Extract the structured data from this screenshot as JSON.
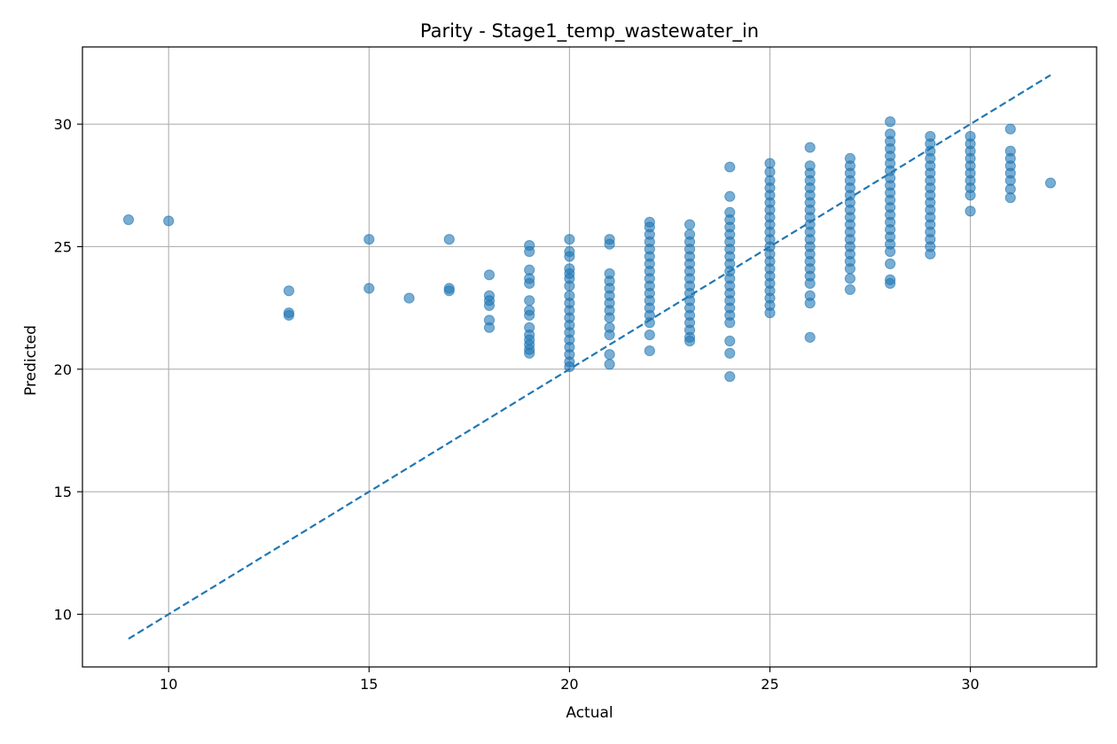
{
  "chart_data": {
    "type": "scatter",
    "title": "Parity - Stage1_temp_wastewater_in",
    "xlabel": "Actual",
    "ylabel": "Predicted",
    "xlim": [
      7.85,
      33.15
    ],
    "ylim": [
      7.85,
      33.15
    ],
    "xticks": [
      10,
      15,
      20,
      25,
      30
    ],
    "yticks": [
      10,
      15,
      20,
      25,
      30
    ],
    "grid": true,
    "colors": {
      "points": "#1f77b4",
      "parity_line": "#1f77b4",
      "grid": "#b0b0b0"
    },
    "parity_line": {
      "x": [
        9,
        32
      ],
      "y": [
        9,
        32
      ],
      "style": "dashed"
    },
    "points": [
      {
        "x": 9,
        "y": 26.1
      },
      {
        "x": 10,
        "y": 26.05
      },
      {
        "x": 13,
        "y": 23.2
      },
      {
        "x": 13,
        "y": 22.3
      },
      {
        "x": 13,
        "y": 22.2
      },
      {
        "x": 15,
        "y": 25.3
      },
      {
        "x": 15,
        "y": 23.3
      },
      {
        "x": 16,
        "y": 22.9
      },
      {
        "x": 17,
        "y": 25.3
      },
      {
        "x": 17,
        "y": 23.3
      },
      {
        "x": 17,
        "y": 23.2
      },
      {
        "x": 18,
        "y": 23.85
      },
      {
        "x": 18,
        "y": 23.0
      },
      {
        "x": 18,
        "y": 22.8
      },
      {
        "x": 18,
        "y": 22.6
      },
      {
        "x": 18,
        "y": 22.0
      },
      {
        "x": 18,
        "y": 21.7
      },
      {
        "x": 19,
        "y": 25.05
      },
      {
        "x": 19,
        "y": 24.8
      },
      {
        "x": 19,
        "y": 24.05
      },
      {
        "x": 19,
        "y": 23.7
      },
      {
        "x": 19,
        "y": 23.5
      },
      {
        "x": 19,
        "y": 22.8
      },
      {
        "x": 19,
        "y": 22.4
      },
      {
        "x": 19,
        "y": 22.2
      },
      {
        "x": 19,
        "y": 21.7
      },
      {
        "x": 19,
        "y": 21.4
      },
      {
        "x": 19,
        "y": 21.2
      },
      {
        "x": 19,
        "y": 21.0
      },
      {
        "x": 19,
        "y": 20.8
      },
      {
        "x": 19,
        "y": 20.65
      },
      {
        "x": 20,
        "y": 25.3
      },
      {
        "x": 20,
        "y": 24.8
      },
      {
        "x": 20,
        "y": 24.6
      },
      {
        "x": 20,
        "y": 24.1
      },
      {
        "x": 20,
        "y": 23.9
      },
      {
        "x": 20,
        "y": 23.7
      },
      {
        "x": 20,
        "y": 23.4
      },
      {
        "x": 20,
        "y": 23.0
      },
      {
        "x": 20,
        "y": 22.7
      },
      {
        "x": 20,
        "y": 22.4
      },
      {
        "x": 20,
        "y": 22.1
      },
      {
        "x": 20,
        "y": 21.8
      },
      {
        "x": 20,
        "y": 21.5
      },
      {
        "x": 20,
        "y": 21.2
      },
      {
        "x": 20,
        "y": 20.9
      },
      {
        "x": 20,
        "y": 20.6
      },
      {
        "x": 20,
        "y": 20.3
      },
      {
        "x": 20,
        "y": 20.1
      },
      {
        "x": 21,
        "y": 25.3
      },
      {
        "x": 21,
        "y": 25.1
      },
      {
        "x": 21,
        "y": 23.9
      },
      {
        "x": 21,
        "y": 23.6
      },
      {
        "x": 21,
        "y": 23.3
      },
      {
        "x": 21,
        "y": 23.0
      },
      {
        "x": 21,
        "y": 22.7
      },
      {
        "x": 21,
        "y": 22.4
      },
      {
        "x": 21,
        "y": 22.1
      },
      {
        "x": 21,
        "y": 21.7
      },
      {
        "x": 21,
        "y": 21.4
      },
      {
        "x": 21,
        "y": 20.6
      },
      {
        "x": 21,
        "y": 20.2
      },
      {
        "x": 22,
        "y": 26.0
      },
      {
        "x": 22,
        "y": 25.8
      },
      {
        "x": 22,
        "y": 25.5
      },
      {
        "x": 22,
        "y": 25.2
      },
      {
        "x": 22,
        "y": 24.9
      },
      {
        "x": 22,
        "y": 24.6
      },
      {
        "x": 22,
        "y": 24.3
      },
      {
        "x": 22,
        "y": 24.0
      },
      {
        "x": 22,
        "y": 23.7
      },
      {
        "x": 22,
        "y": 23.4
      },
      {
        "x": 22,
        "y": 23.1
      },
      {
        "x": 22,
        "y": 22.8
      },
      {
        "x": 22,
        "y": 22.5
      },
      {
        "x": 22,
        "y": 22.2
      },
      {
        "x": 22,
        "y": 21.9
      },
      {
        "x": 22,
        "y": 21.4
      },
      {
        "x": 22,
        "y": 20.75
      },
      {
        "x": 23,
        "y": 25.9
      },
      {
        "x": 23,
        "y": 25.5
      },
      {
        "x": 23,
        "y": 25.2
      },
      {
        "x": 23,
        "y": 24.9
      },
      {
        "x": 23,
        "y": 24.6
      },
      {
        "x": 23,
        "y": 24.3
      },
      {
        "x": 23,
        "y": 24.0
      },
      {
        "x": 23,
        "y": 23.7
      },
      {
        "x": 23,
        "y": 23.4
      },
      {
        "x": 23,
        "y": 23.1
      },
      {
        "x": 23,
        "y": 22.8
      },
      {
        "x": 23,
        "y": 22.5
      },
      {
        "x": 23,
        "y": 22.2
      },
      {
        "x": 23,
        "y": 21.9
      },
      {
        "x": 23,
        "y": 21.6
      },
      {
        "x": 23,
        "y": 21.3
      },
      {
        "x": 23,
        "y": 21.15
      },
      {
        "x": 24,
        "y": 28.25
      },
      {
        "x": 24,
        "y": 27.05
      },
      {
        "x": 24,
        "y": 26.4
      },
      {
        "x": 24,
        "y": 26.1
      },
      {
        "x": 24,
        "y": 25.8
      },
      {
        "x": 24,
        "y": 25.5
      },
      {
        "x": 24,
        "y": 25.2
      },
      {
        "x": 24,
        "y": 24.9
      },
      {
        "x": 24,
        "y": 24.6
      },
      {
        "x": 24,
        "y": 24.3
      },
      {
        "x": 24,
        "y": 24.0
      },
      {
        "x": 24,
        "y": 23.7
      },
      {
        "x": 24,
        "y": 23.4
      },
      {
        "x": 24,
        "y": 23.1
      },
      {
        "x": 24,
        "y": 22.8
      },
      {
        "x": 24,
        "y": 22.5
      },
      {
        "x": 24,
        "y": 22.2
      },
      {
        "x": 24,
        "y": 21.9
      },
      {
        "x": 24,
        "y": 21.15
      },
      {
        "x": 24,
        "y": 20.65
      },
      {
        "x": 24,
        "y": 19.7
      },
      {
        "x": 25,
        "y": 28.4
      },
      {
        "x": 25,
        "y": 28.05
      },
      {
        "x": 25,
        "y": 27.7
      },
      {
        "x": 25,
        "y": 27.4
      },
      {
        "x": 25,
        "y": 27.1
      },
      {
        "x": 25,
        "y": 26.8
      },
      {
        "x": 25,
        "y": 26.5
      },
      {
        "x": 25,
        "y": 26.2
      },
      {
        "x": 25,
        "y": 25.9
      },
      {
        "x": 25,
        "y": 25.6
      },
      {
        "x": 25,
        "y": 25.3
      },
      {
        "x": 25,
        "y": 25.0
      },
      {
        "x": 25,
        "y": 24.7
      },
      {
        "x": 25,
        "y": 24.4
      },
      {
        "x": 25,
        "y": 24.1
      },
      {
        "x": 25,
        "y": 23.8
      },
      {
        "x": 25,
        "y": 23.5
      },
      {
        "x": 25,
        "y": 23.2
      },
      {
        "x": 25,
        "y": 22.9
      },
      {
        "x": 25,
        "y": 22.6
      },
      {
        "x": 25,
        "y": 22.3
      },
      {
        "x": 26,
        "y": 29.05
      },
      {
        "x": 26,
        "y": 28.3
      },
      {
        "x": 26,
        "y": 28.0
      },
      {
        "x": 26,
        "y": 27.7
      },
      {
        "x": 26,
        "y": 27.4
      },
      {
        "x": 26,
        "y": 27.1
      },
      {
        "x": 26,
        "y": 26.8
      },
      {
        "x": 26,
        "y": 26.5
      },
      {
        "x": 26,
        "y": 26.2
      },
      {
        "x": 26,
        "y": 25.9
      },
      {
        "x": 26,
        "y": 25.6
      },
      {
        "x": 26,
        "y": 25.3
      },
      {
        "x": 26,
        "y": 25.0
      },
      {
        "x": 26,
        "y": 24.7
      },
      {
        "x": 26,
        "y": 24.4
      },
      {
        "x": 26,
        "y": 24.1
      },
      {
        "x": 26,
        "y": 23.8
      },
      {
        "x": 26,
        "y": 23.5
      },
      {
        "x": 26,
        "y": 23.0
      },
      {
        "x": 26,
        "y": 22.7
      },
      {
        "x": 26,
        "y": 21.3
      },
      {
        "x": 27,
        "y": 28.6
      },
      {
        "x": 27,
        "y": 28.3
      },
      {
        "x": 27,
        "y": 28.0
      },
      {
        "x": 27,
        "y": 27.7
      },
      {
        "x": 27,
        "y": 27.4
      },
      {
        "x": 27,
        "y": 27.1
      },
      {
        "x": 27,
        "y": 26.8
      },
      {
        "x": 27,
        "y": 26.5
      },
      {
        "x": 27,
        "y": 26.2
      },
      {
        "x": 27,
        "y": 25.9
      },
      {
        "x": 27,
        "y": 25.6
      },
      {
        "x": 27,
        "y": 25.3
      },
      {
        "x": 27,
        "y": 25.0
      },
      {
        "x": 27,
        "y": 24.7
      },
      {
        "x": 27,
        "y": 24.4
      },
      {
        "x": 27,
        "y": 24.1
      },
      {
        "x": 27,
        "y": 23.7
      },
      {
        "x": 27,
        "y": 23.25
      },
      {
        "x": 28,
        "y": 30.1
      },
      {
        "x": 28,
        "y": 29.6
      },
      {
        "x": 28,
        "y": 29.3
      },
      {
        "x": 28,
        "y": 29.0
      },
      {
        "x": 28,
        "y": 28.7
      },
      {
        "x": 28,
        "y": 28.4
      },
      {
        "x": 28,
        "y": 28.1
      },
      {
        "x": 28,
        "y": 27.8
      },
      {
        "x": 28,
        "y": 27.5
      },
      {
        "x": 28,
        "y": 27.2
      },
      {
        "x": 28,
        "y": 26.9
      },
      {
        "x": 28,
        "y": 26.6
      },
      {
        "x": 28,
        "y": 26.3
      },
      {
        "x": 28,
        "y": 26.0
      },
      {
        "x": 28,
        "y": 25.7
      },
      {
        "x": 28,
        "y": 25.4
      },
      {
        "x": 28,
        "y": 25.1
      },
      {
        "x": 28,
        "y": 24.8
      },
      {
        "x": 28,
        "y": 24.3
      },
      {
        "x": 28,
        "y": 23.65
      },
      {
        "x": 28,
        "y": 23.5
      },
      {
        "x": 29,
        "y": 29.5
      },
      {
        "x": 29,
        "y": 29.2
      },
      {
        "x": 29,
        "y": 28.9
      },
      {
        "x": 29,
        "y": 28.6
      },
      {
        "x": 29,
        "y": 28.3
      },
      {
        "x": 29,
        "y": 28.0
      },
      {
        "x": 29,
        "y": 27.7
      },
      {
        "x": 29,
        "y": 27.4
      },
      {
        "x": 29,
        "y": 27.1
      },
      {
        "x": 29,
        "y": 26.8
      },
      {
        "x": 29,
        "y": 26.5
      },
      {
        "x": 29,
        "y": 26.2
      },
      {
        "x": 29,
        "y": 25.9
      },
      {
        "x": 29,
        "y": 25.6
      },
      {
        "x": 29,
        "y": 25.3
      },
      {
        "x": 29,
        "y": 25.0
      },
      {
        "x": 29,
        "y": 24.7
      },
      {
        "x": 30,
        "y": 29.5
      },
      {
        "x": 30,
        "y": 29.2
      },
      {
        "x": 30,
        "y": 28.9
      },
      {
        "x": 30,
        "y": 28.6
      },
      {
        "x": 30,
        "y": 28.3
      },
      {
        "x": 30,
        "y": 28.0
      },
      {
        "x": 30,
        "y": 27.7
      },
      {
        "x": 30,
        "y": 27.4
      },
      {
        "x": 30,
        "y": 27.1
      },
      {
        "x": 30,
        "y": 26.45
      },
      {
        "x": 31,
        "y": 29.8
      },
      {
        "x": 31,
        "y": 28.9
      },
      {
        "x": 31,
        "y": 28.6
      },
      {
        "x": 31,
        "y": 28.3
      },
      {
        "x": 31,
        "y": 28.0
      },
      {
        "x": 31,
        "y": 27.7
      },
      {
        "x": 31,
        "y": 27.35
      },
      {
        "x": 31,
        "y": 27.0
      },
      {
        "x": 32,
        "y": 27.6
      }
    ]
  }
}
